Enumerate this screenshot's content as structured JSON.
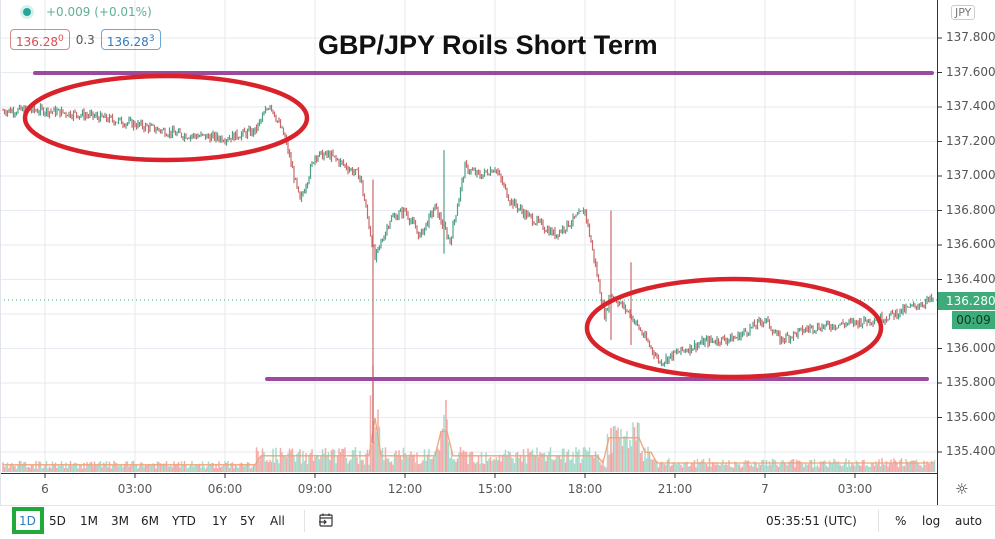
{
  "legend": {
    "status_icon": "live-dot-icon",
    "change": "+0.009 (+0.01%)"
  },
  "quotes": {
    "sell_main": "136.28",
    "sell_pip": "0",
    "spread": "0.3",
    "buy_main": "136.28",
    "buy_pip": "3"
  },
  "title": "GBP/JPY Roils Short Term",
  "price_axis": {
    "currency": "JPY",
    "ticks": [
      "137.800",
      "137.600",
      "137.400",
      "137.200",
      "137.000",
      "136.800",
      "136.600",
      "136.400",
      "136.000",
      "135.800",
      "135.600",
      "135.400"
    ],
    "last_price": "136.280",
    "countdown": "00:09"
  },
  "time_axis": {
    "ticks": [
      "6",
      "03:00",
      "06:00",
      "09:00",
      "12:00",
      "15:00",
      "18:00",
      "21:00",
      "7",
      "03:00"
    ],
    "settings_icon": "gear-icon"
  },
  "bottom_bar": {
    "ranges": [
      "1D",
      "5D",
      "1M",
      "3M",
      "6M",
      "YTD",
      "1Y",
      "5Y",
      "All"
    ],
    "active_range": "1D",
    "goto_date_icon": "calendar-goto-icon",
    "clock": "05:35:51 (UTC)",
    "percent": "%",
    "log": "log",
    "auto": "auto"
  },
  "colors": {
    "up": "#26a69a",
    "down": "#ef5350",
    "annotation_ellipse": "#d9222a",
    "support_resistance": "#9c4a9e",
    "last_price_bg": "#3dac7a",
    "active_range_box": "#1faa3b"
  },
  "chart_data": {
    "type": "line",
    "title": "GBP/JPY Roils Short Term",
    "symbol": "GBP/JPY",
    "xlabel": "",
    "ylabel": "JPY",
    "ylim": [
      135.3,
      137.9
    ],
    "grid": true,
    "x": [
      "6 00:00",
      "01:30",
      "03:00",
      "04:30",
      "06:00",
      "07:00",
      "07:30",
      "08:00",
      "08:30",
      "09:00",
      "09:30",
      "10:00",
      "10:30",
      "11:00",
      "11:30",
      "12:00",
      "12:30",
      "13:00",
      "13:30",
      "14:00",
      "14:30",
      "15:00",
      "15:30",
      "16:00",
      "17:00",
      "18:00",
      "18:40",
      "18:50",
      "19:30",
      "20:30",
      "21:00",
      "22:00",
      "23:00",
      "7 00:00",
      "00:30",
      "01:30",
      "02:30",
      "03:00",
      "04:00",
      "05:30"
    ],
    "series": [
      {
        "name": "GBP/JPY price",
        "values": [
          137.38,
          137.35,
          137.3,
          137.24,
          137.22,
          137.26,
          137.42,
          137.22,
          136.85,
          137.12,
          137.12,
          137.06,
          137.0,
          136.52,
          136.75,
          136.8,
          136.65,
          136.82,
          136.62,
          137.05,
          137.0,
          137.05,
          136.86,
          136.78,
          136.66,
          136.8,
          136.18,
          136.32,
          136.2,
          135.92,
          135.97,
          136.04,
          136.06,
          136.17,
          136.05,
          136.12,
          136.14,
          136.15,
          136.18,
          136.28
        ]
      }
    ],
    "annotations": [
      {
        "type": "hline",
        "label": "resistance",
        "value": 137.6
      },
      {
        "type": "hline",
        "label": "support",
        "value": 135.82
      },
      {
        "type": "ellipse",
        "label": "early consolidation",
        "x_range": [
          "6 00:30",
          "7 08:00"
        ],
        "y_center": 137.3
      },
      {
        "type": "ellipse",
        "label": "recent consolidation",
        "x_range": [
          "18:00",
          "7 02:30"
        ],
        "y_center": 136.1
      }
    ],
    "volume": {
      "note": "volume histogram with moving average at bottom of pane; spikes near 11:00, 15:00 and 19:00"
    },
    "last_price": 136.28
  }
}
